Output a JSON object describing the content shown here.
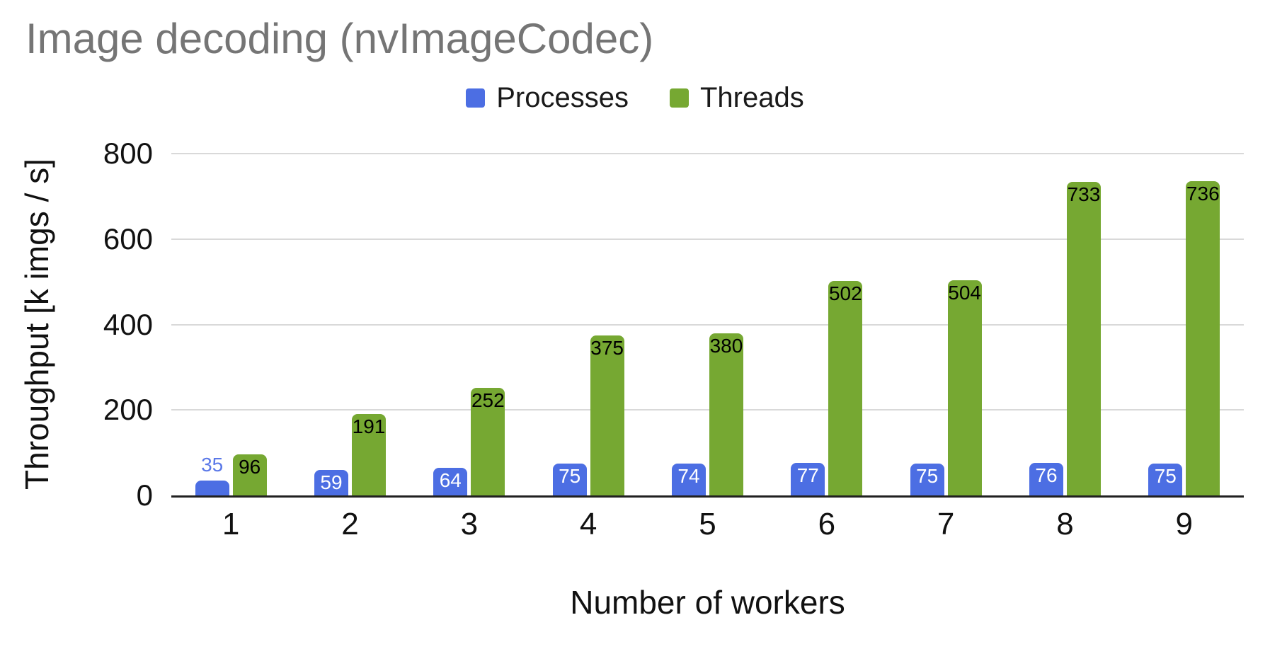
{
  "title": "Image decoding (nvImageCodec)",
  "title_color": "#757575",
  "chart_data": {
    "type": "bar",
    "title": "Image decoding (nvImageCodec)",
    "xlabel": "Number of workers",
    "ylabel": "Throughput [k imgs / s]",
    "categories": [
      "1",
      "2",
      "3",
      "4",
      "5",
      "6",
      "7",
      "8",
      "9"
    ],
    "series": [
      {
        "name": "Processes",
        "color": "#4C6EE3",
        "values": [
          35,
          59,
          64,
          75,
          74,
          77,
          75,
          76,
          75
        ],
        "label_color_inside": "#ffffff",
        "label_color_outside": "#5A78E8"
      },
      {
        "name": "Threads",
        "color": "#76A832",
        "values": [
          96,
          191,
          252,
          375,
          380,
          502,
          504,
          733,
          736
        ],
        "label_color_inside": "#000000",
        "label_color_outside": "#000000"
      }
    ],
    "ylim": [
      0,
      800
    ],
    "yticks": [
      0,
      200,
      400,
      600,
      800
    ],
    "grid": true,
    "legend_position": "top",
    "gridline_color": "#d9d9d9",
    "axis_line_color": "#212121"
  }
}
